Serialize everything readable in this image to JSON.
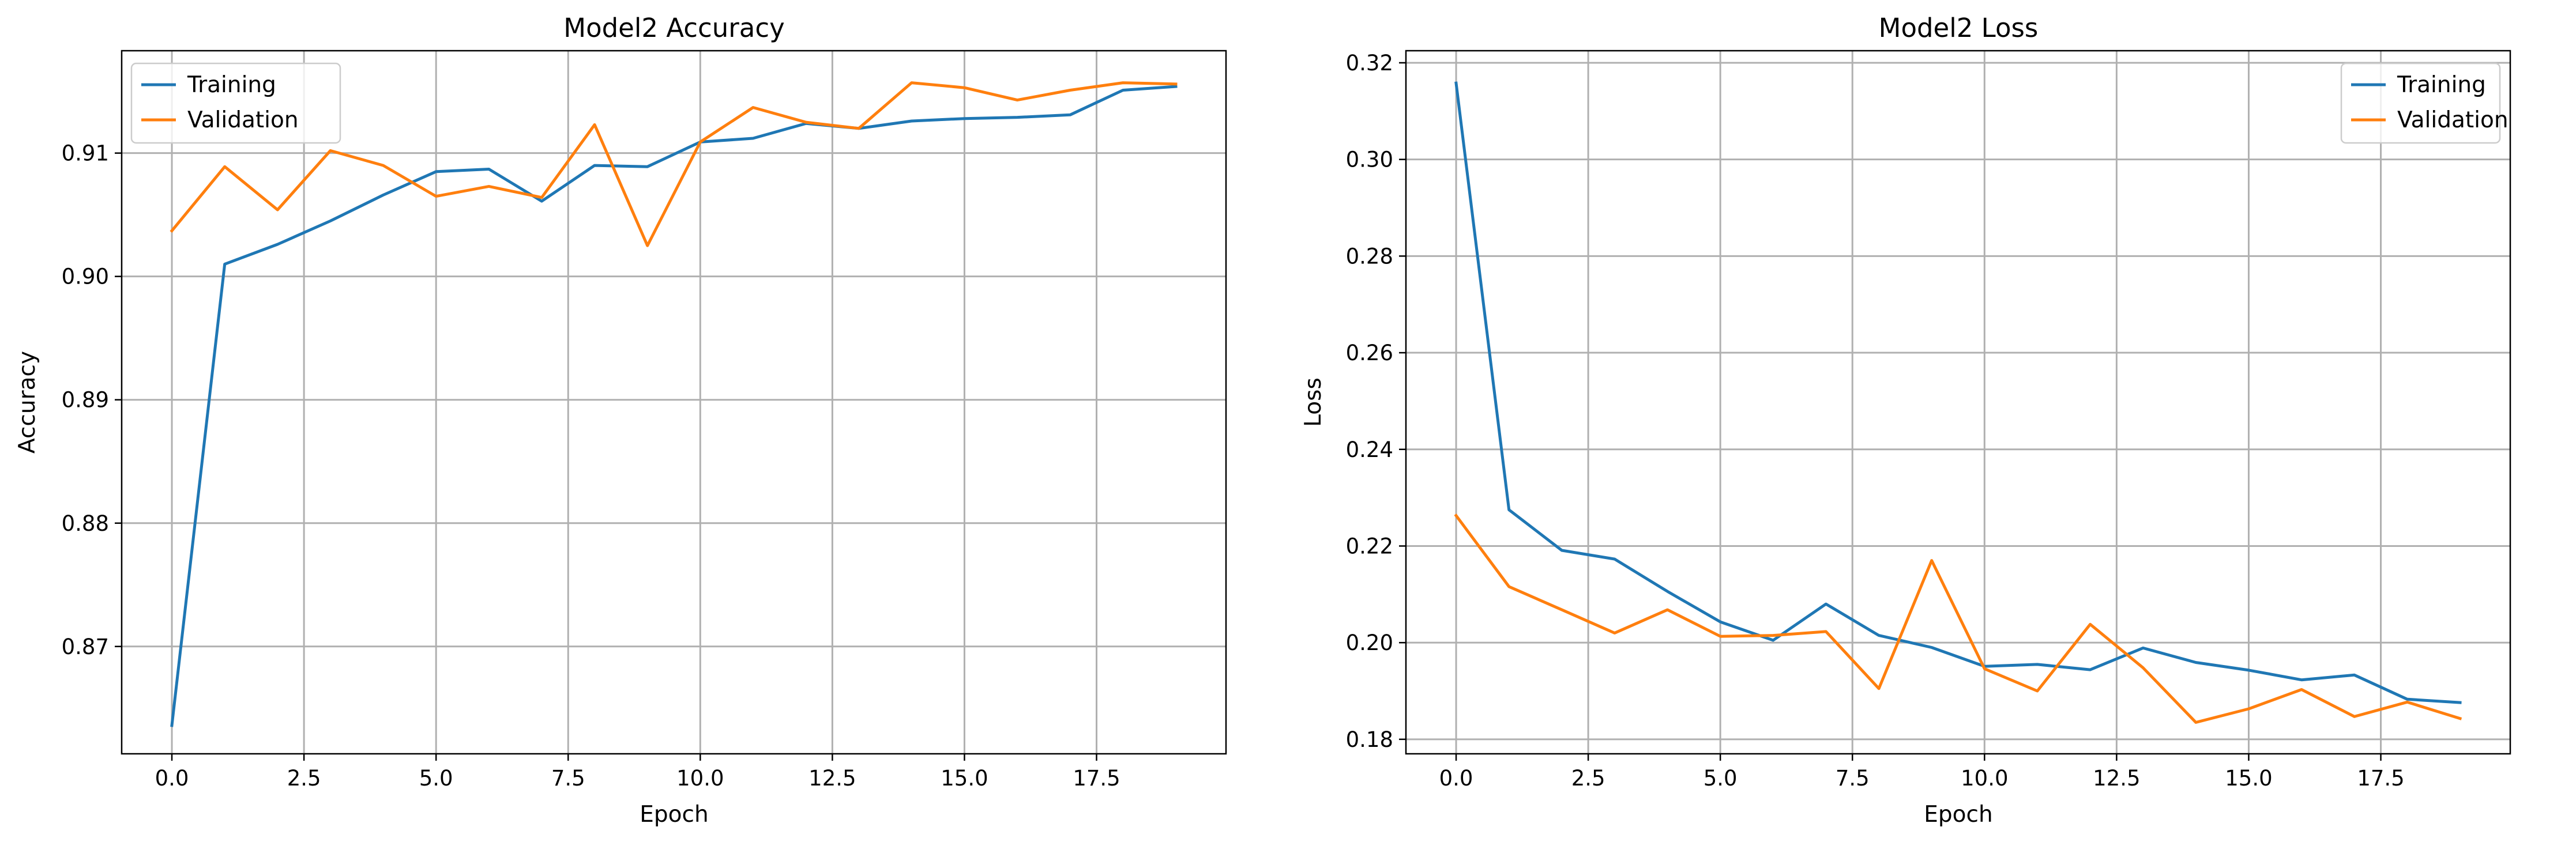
{
  "chart_data": [
    {
      "type": "line",
      "title": "Model2 Accuracy",
      "xlabel": "Epoch",
      "ylabel": "Accuracy",
      "xlim": [
        -0.95,
        19.95
      ],
      "ylim": [
        0.8613,
        0.9183
      ],
      "xticks": [
        0,
        2.5,
        5,
        7.5,
        10,
        12.5,
        15,
        17.5
      ],
      "xtick_labels": [
        "0.0",
        "2.5",
        "5.0",
        "7.5",
        "10.0",
        "12.5",
        "15.0",
        "17.5"
      ],
      "yticks": [
        0.87,
        0.88,
        0.89,
        0.9,
        0.91
      ],
      "ytick_labels": [
        "0.87",
        "0.88",
        "0.89",
        "0.90",
        "0.91"
      ],
      "grid": true,
      "legend": "upper-left",
      "x": [
        0,
        1,
        2,
        3,
        4,
        5,
        6,
        7,
        8,
        9,
        10,
        11,
        12,
        13,
        14,
        15,
        16,
        17,
        18,
        19
      ],
      "series": [
        {
          "name": "Training",
          "color": "#1f77b4",
          "values": [
            0.8636,
            0.901,
            0.9026,
            0.9045,
            0.9066,
            0.9085,
            0.9087,
            0.9061,
            0.909,
            0.9089,
            0.9109,
            0.9112,
            0.9124,
            0.912,
            0.9126,
            0.9128,
            0.9129,
            0.9131,
            0.9151,
            0.9154
          ]
        },
        {
          "name": "Validation",
          "color": "#ff7f0e",
          "values": [
            0.9037,
            0.9089,
            0.9054,
            0.9102,
            0.909,
            0.9065,
            0.9073,
            0.9064,
            0.9123,
            0.9025,
            0.9109,
            0.9137,
            0.9125,
            0.912,
            0.9157,
            0.9153,
            0.9143,
            0.9151,
            0.9157,
            0.9156
          ]
        }
      ]
    },
    {
      "type": "line",
      "title": "Model2 Loss",
      "xlabel": "Epoch",
      "ylabel": "Loss",
      "xlim": [
        -0.95,
        19.95
      ],
      "ylim": [
        0.177,
        0.3225
      ],
      "xticks": [
        0,
        2.5,
        5,
        7.5,
        10,
        12.5,
        15,
        17.5
      ],
      "xtick_labels": [
        "0.0",
        "2.5",
        "5.0",
        "7.5",
        "10.0",
        "12.5",
        "15.0",
        "17.5"
      ],
      "yticks": [
        0.18,
        0.2,
        0.22,
        0.24,
        0.26,
        0.28,
        0.3,
        0.32
      ],
      "ytick_labels": [
        "0.18",
        "0.20",
        "0.22",
        "0.24",
        "0.26",
        "0.28",
        "0.30",
        "0.32"
      ],
      "grid": true,
      "legend": "upper-right",
      "x": [
        0,
        1,
        2,
        3,
        4,
        5,
        6,
        7,
        8,
        9,
        10,
        11,
        12,
        13,
        14,
        15,
        16,
        17,
        18,
        19
      ],
      "series": [
        {
          "name": "Training",
          "color": "#1f77b4",
          "values": [
            0.3158,
            0.2275,
            0.2191,
            0.2173,
            0.2106,
            0.2043,
            0.2005,
            0.208,
            0.2015,
            0.199,
            0.1951,
            0.1955,
            0.1944,
            0.1989,
            0.1959,
            0.1943,
            0.1923,
            0.1933,
            0.1883,
            0.1876
          ]
        },
        {
          "name": "Validation",
          "color": "#ff7f0e",
          "values": [
            0.2263,
            0.2116,
            0.2068,
            0.202,
            0.2068,
            0.2013,
            0.2015,
            0.2023,
            0.1905,
            0.217,
            0.1946,
            0.19,
            0.2038,
            0.1948,
            0.1835,
            0.1863,
            0.1903,
            0.1847,
            0.1877,
            0.1843
          ]
        }
      ]
    }
  ]
}
